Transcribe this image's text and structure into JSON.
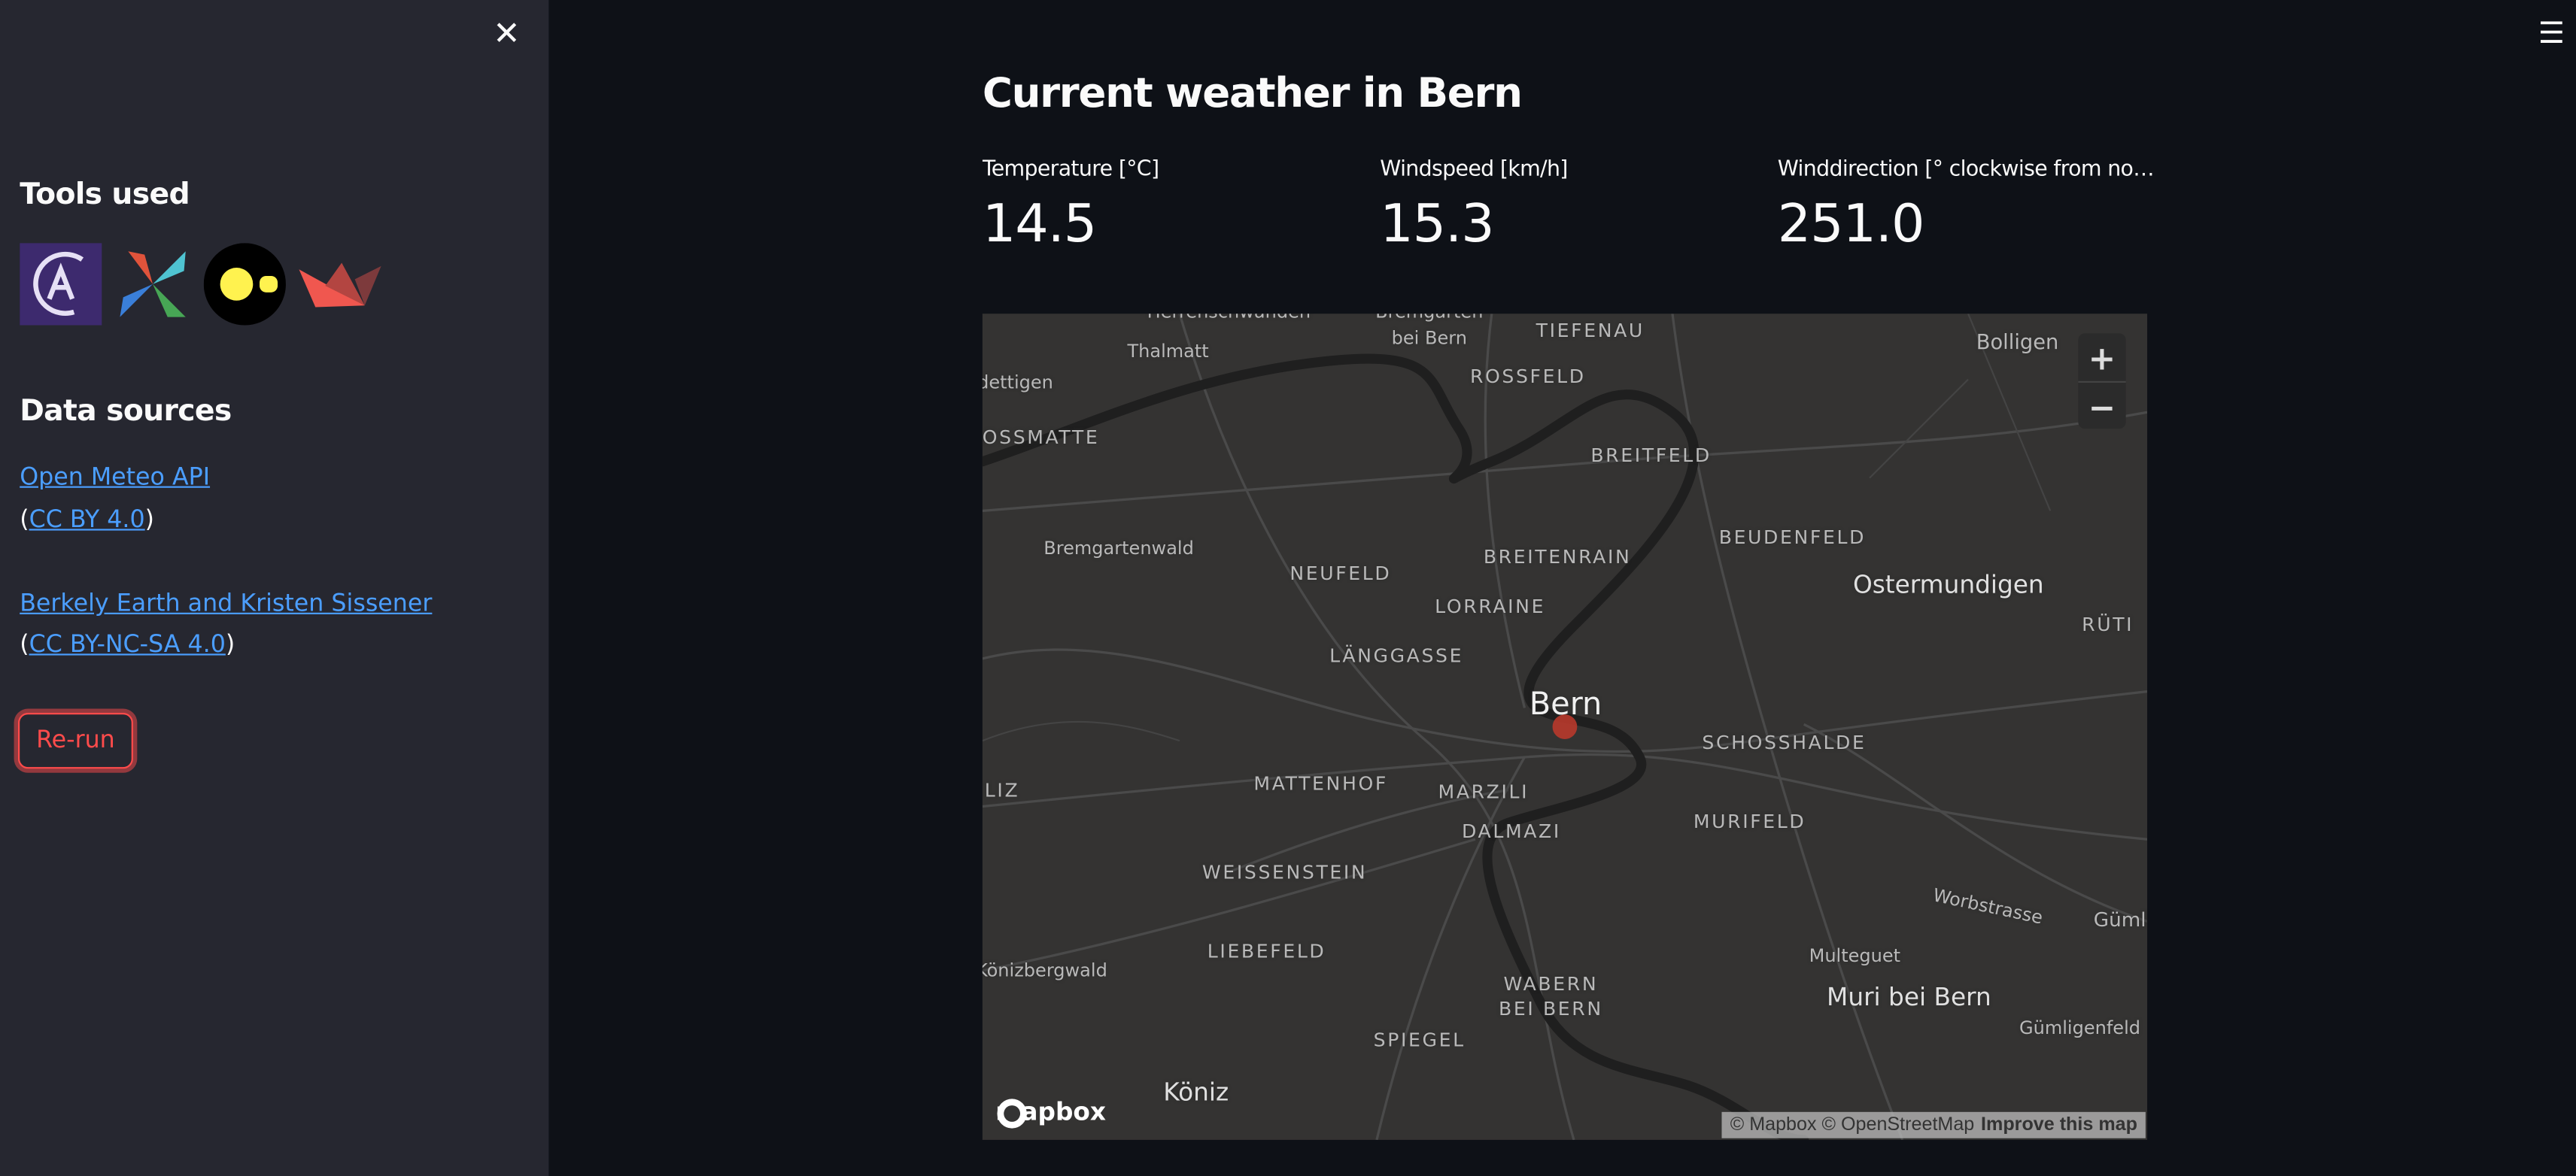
{
  "sidebar": {
    "close_icon": "close-icon",
    "tools_heading": "Tools used",
    "tools": [
      "astronomer-logo",
      "airflow-logo",
      "duckdb-logo",
      "streamlit-logo"
    ],
    "data_heading": "Data sources",
    "sources": [
      {
        "name": "Open Meteo API",
        "license": "CC BY 4.0"
      },
      {
        "name": "Berkely Earth and Kristen Sissener",
        "license": "CC BY-NC-SA 4.0"
      }
    ],
    "paren_open": "(",
    "paren_close": ")",
    "rerun_label": "Re-run",
    "accent_color": "#ff4b4b",
    "link_color": "#4b9eff"
  },
  "header": {
    "menu_icon": "hamburger-menu-icon"
  },
  "main": {
    "title": "Current weather in Bern",
    "metrics": [
      {
        "label": "Temperature [°C]",
        "value": "14.5"
      },
      {
        "label": "Windspeed [km/h]",
        "value": "15.3"
      },
      {
        "label": "Winddirection [° clockwise from north]",
        "value": "251.0"
      }
    ]
  },
  "map": {
    "labels": [
      "Herrenschwanden",
      "Bremgarten",
      "bei Bern",
      "Thalmatt",
      "TIEFENAU",
      "Bolligen",
      "dettigen",
      "ROSSFELD",
      "LOSSMATTE",
      "BREITFELD",
      "Bremgartenwald",
      "BEUDENFELD",
      "BREITENRAIN",
      "NEUFELD",
      "Ostermundigen",
      "LORRAINE",
      "RÜTI",
      "LÄNGGASSE",
      "Bern",
      "SCHOSSHALDE",
      "LIZ",
      "MATTENHOF",
      "MARZILI",
      "MURIFELD",
      "DALMAZI",
      "WEISSENSTEIN",
      "Worbstrasse",
      "Gümli",
      "LIEBEFELD",
      "Multeguet",
      "Könizbergwald",
      "WABERN",
      "BEI BERN",
      "Muri bei Bern",
      "Gümligenfeld",
      "SPIEGEL",
      "Köniz"
    ],
    "zoom_in": "+",
    "zoom_out": "−",
    "logo_text": "mapbox",
    "attribution": "© Mapbox © OpenStreetMap",
    "improve": "Improve this map",
    "marker_color": "#b8392b"
  }
}
